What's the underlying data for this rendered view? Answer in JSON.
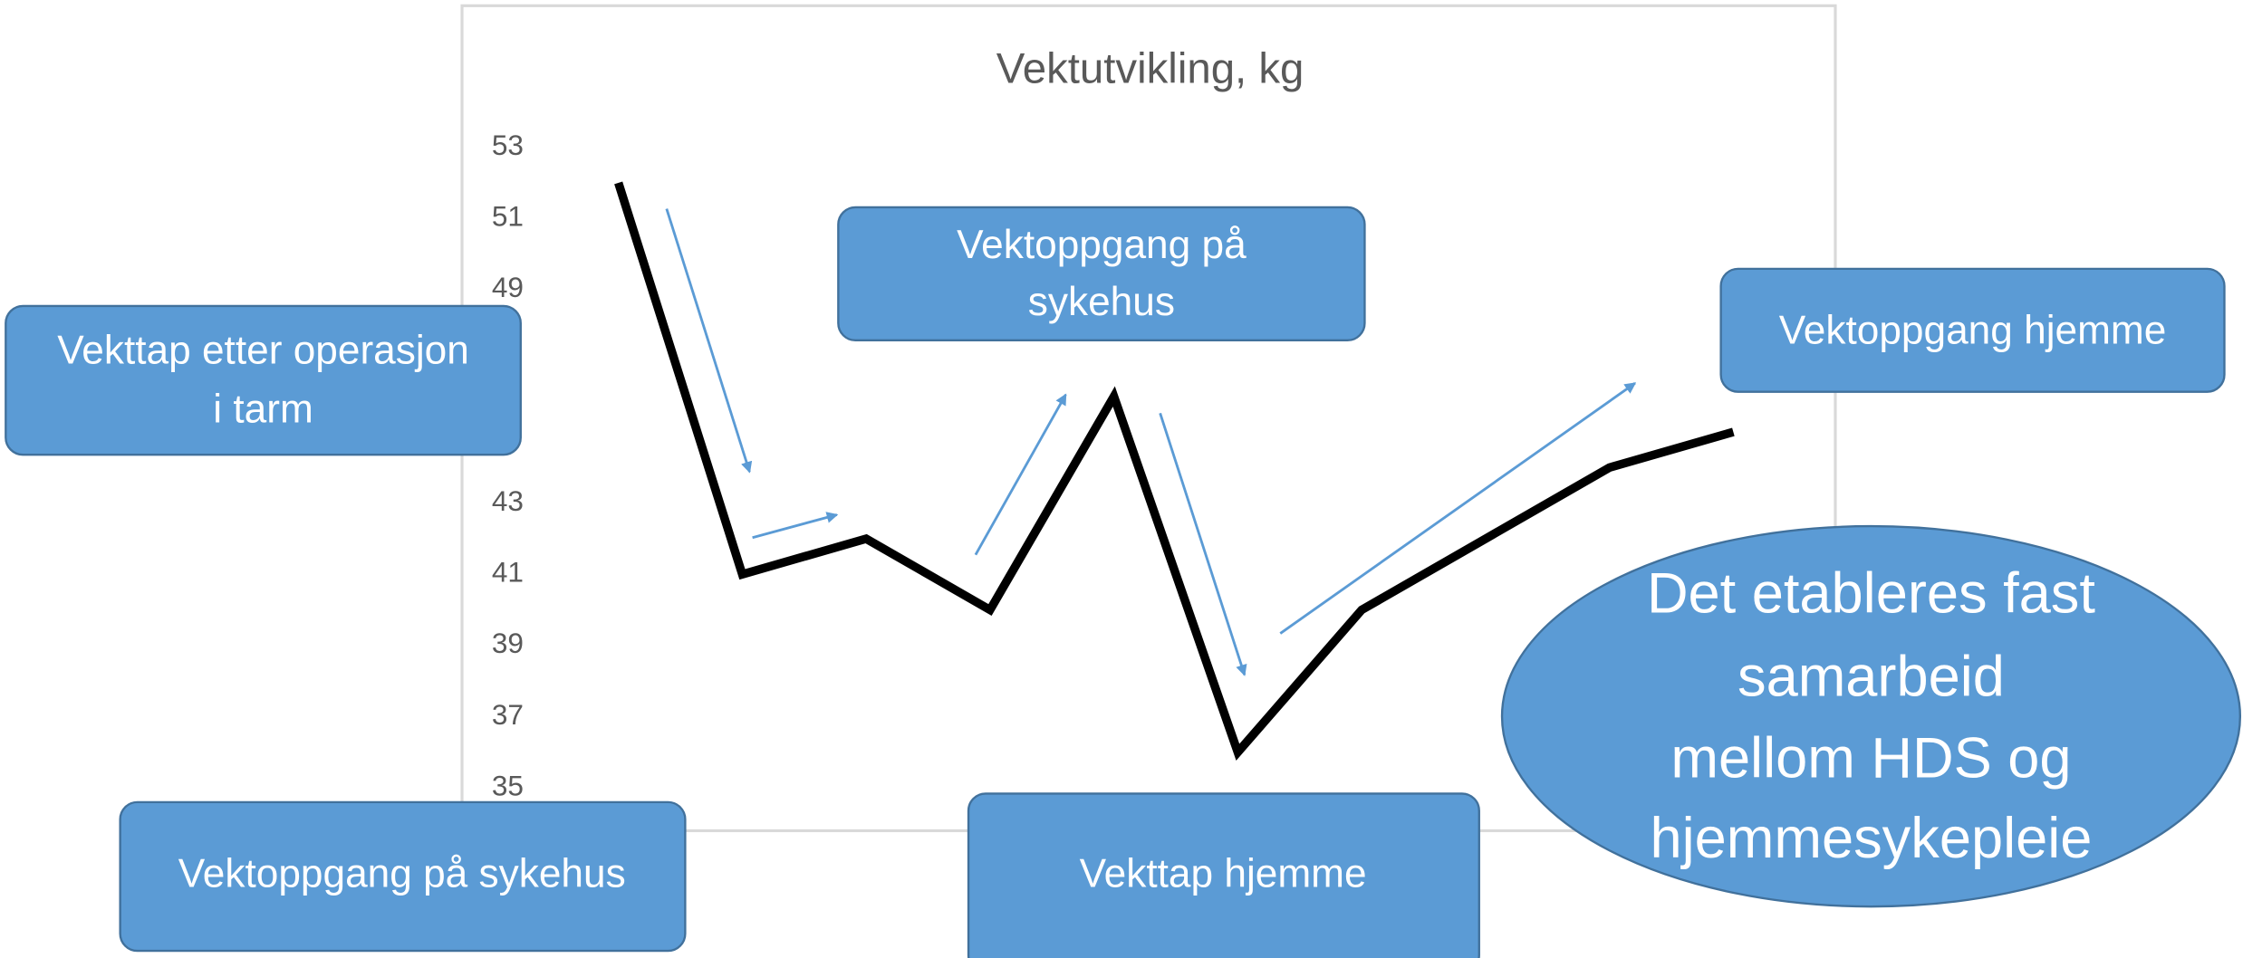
{
  "chart_data": {
    "type": "line",
    "title": "Vektutvikling, kg",
    "categories": [
      null,
      null,
      null,
      null,
      null,
      null,
      null,
      null,
      null,
      null
    ],
    "series": [
      {
        "color": "#000000",
        "values": [
          52,
          41,
          42,
          40,
          46,
          36,
          40,
          42,
          44,
          45
        ]
      }
    ],
    "ylim": [
      35,
      53
    ],
    "yticks": [
      35,
      37,
      39,
      41,
      43,
      49,
      51,
      53
    ],
    "grid": false,
    "annotations": [
      [
        "Vekttap etter operasjon",
        "i tarm"
      ],
      [
        "Vektoppgang på",
        "sykehus"
      ],
      [
        "Vektoppgang hjemme"
      ],
      [
        "Vektoppgang på sykehus"
      ],
      [
        "Vekttap hjemme"
      ],
      [
        "Det etableres fast",
        "samarbeid",
        "mellom HDS og",
        "hjemmesykepleie"
      ]
    ]
  }
}
